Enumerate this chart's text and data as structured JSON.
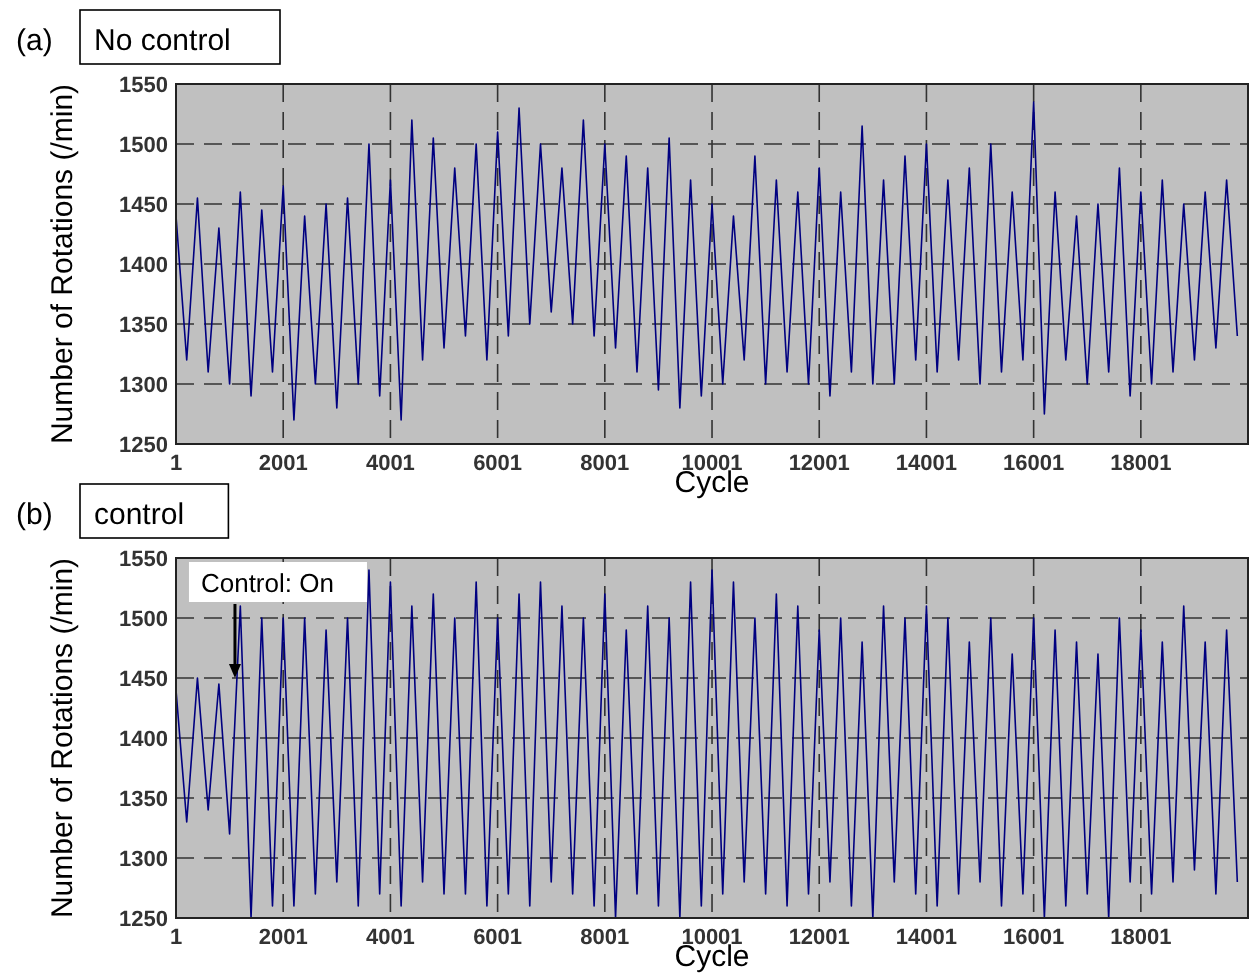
{
  "chart_data": [
    {
      "type": "line",
      "title": "(a)",
      "subtitle": "No control",
      "xlabel": "Cycle",
      "ylabel": "Number of Rotations (/min)",
      "x": [
        1,
        201,
        401,
        601,
        801,
        1001,
        1201,
        1401,
        1601,
        1801,
        2001,
        2201,
        2401,
        2601,
        2801,
        3001,
        3201,
        3401,
        3601,
        3801,
        4001,
        4201,
        4401,
        4601,
        4801,
        5001,
        5201,
        5401,
        5601,
        5801,
        6001,
        6201,
        6401,
        6601,
        6801,
        7001,
        7201,
        7401,
        7601,
        7801,
        8001,
        8201,
        8401,
        8601,
        8801,
        9001,
        9201,
        9401,
        9601,
        9801,
        10001,
        10201,
        10401,
        10601,
        10801,
        11001,
        11201,
        11401,
        11601,
        11801,
        12001,
        12201,
        12401,
        12601,
        12801,
        13001,
        13201,
        13401,
        13601,
        13801,
        14001,
        14201,
        14401,
        14601,
        14801,
        15001,
        15201,
        15401,
        15601,
        15801,
        16001,
        16201,
        16401,
        16601,
        16801,
        17001,
        17201,
        17401,
        17601,
        17801,
        18001,
        18201,
        18401,
        18601,
        18801,
        19001,
        19201,
        19401,
        19601,
        19801
      ],
      "series": [
        {
          "color": "#000080",
          "values": [
            1440,
            1320,
            1455,
            1310,
            1430,
            1300,
            1460,
            1290,
            1445,
            1310,
            1465,
            1270,
            1440,
            1300,
            1450,
            1280,
            1455,
            1300,
            1500,
            1290,
            1470,
            1270,
            1520,
            1320,
            1505,
            1330,
            1480,
            1340,
            1500,
            1320,
            1510,
            1340,
            1530,
            1350,
            1500,
            1360,
            1480,
            1350,
            1520,
            1340,
            1500,
            1330,
            1490,
            1310,
            1480,
            1295,
            1505,
            1280,
            1470,
            1290,
            1450,
            1300,
            1440,
            1320,
            1490,
            1300,
            1470,
            1310,
            1460,
            1300,
            1480,
            1290,
            1460,
            1310,
            1515,
            1300,
            1470,
            1300,
            1490,
            1320,
            1500,
            1310,
            1470,
            1320,
            1480,
            1300,
            1500,
            1310,
            1460,
            1320,
            1535,
            1275,
            1460,
            1320,
            1440,
            1300,
            1450,
            1310,
            1480,
            1290,
            1460,
            1300,
            1470,
            1310,
            1450,
            1320,
            1460,
            1330,
            1470,
            1340
          ]
        }
      ],
      "xlim": [
        1,
        20000
      ],
      "xticks": [
        1,
        2001,
        4001,
        6001,
        8001,
        10001,
        12001,
        14001,
        16001,
        18001
      ],
      "ylim": [
        1250,
        1550
      ],
      "yticks": [
        1250,
        1300,
        1350,
        1400,
        1450,
        1500,
        1550
      ],
      "grid": true
    },
    {
      "type": "line",
      "title": "(b)",
      "subtitle": "control",
      "xlabel": "Cycle",
      "ylabel": "Number of Rotations (/min)",
      "annotations": [
        {
          "text": "Control: On",
          "x": 1101,
          "y": 1450
        }
      ],
      "x": [
        1,
        201,
        401,
        601,
        801,
        1001,
        1201,
        1401,
        1601,
        1801,
        2001,
        2201,
        2401,
        2601,
        2801,
        3001,
        3201,
        3401,
        3601,
        3801,
        4001,
        4201,
        4401,
        4601,
        4801,
        5001,
        5201,
        5401,
        5601,
        5801,
        6001,
        6201,
        6401,
        6601,
        6801,
        7001,
        7201,
        7401,
        7601,
        7801,
        8001,
        8201,
        8401,
        8601,
        8801,
        9001,
        9201,
        9401,
        9601,
        9801,
        10001,
        10201,
        10401,
        10601,
        10801,
        11001,
        11201,
        11401,
        11601,
        11801,
        12001,
        12201,
        12401,
        12601,
        12801,
        13001,
        13201,
        13401,
        13601,
        13801,
        14001,
        14201,
        14401,
        14601,
        14801,
        15001,
        15201,
        15401,
        15601,
        15801,
        16001,
        16201,
        16401,
        16601,
        16801,
        17001,
        17201,
        17401,
        17601,
        17801,
        18001,
        18201,
        18401,
        18601,
        18801,
        19001,
        19201,
        19401,
        19601,
        19801
      ],
      "series": [
        {
          "color": "#000080",
          "values": [
            1440,
            1330,
            1450,
            1340,
            1445,
            1320,
            1510,
            1250,
            1500,
            1260,
            1500,
            1260,
            1500,
            1270,
            1490,
            1280,
            1500,
            1260,
            1540,
            1270,
            1530,
            1260,
            1510,
            1280,
            1520,
            1270,
            1500,
            1270,
            1530,
            1260,
            1500,
            1270,
            1520,
            1260,
            1530,
            1280,
            1510,
            1270,
            1500,
            1260,
            1520,
            1250,
            1490,
            1270,
            1510,
            1260,
            1500,
            1250,
            1530,
            1260,
            1540,
            1270,
            1530,
            1280,
            1500,
            1270,
            1520,
            1260,
            1510,
            1270,
            1490,
            1280,
            1500,
            1260,
            1480,
            1250,
            1510,
            1280,
            1500,
            1270,
            1510,
            1260,
            1500,
            1270,
            1480,
            1280,
            1500,
            1260,
            1470,
            1270,
            1500,
            1250,
            1490,
            1260,
            1480,
            1270,
            1470,
            1250,
            1500,
            1280,
            1490,
            1270,
            1480,
            1280,
            1510,
            1290,
            1480,
            1270,
            1490,
            1280
          ]
        }
      ],
      "xlim": [
        1,
        20000
      ],
      "xticks": [
        1,
        2001,
        4001,
        6001,
        8001,
        10001,
        12001,
        14001,
        16001,
        18001
      ],
      "ylim": [
        1250,
        1550
      ],
      "yticks": [
        1250,
        1300,
        1350,
        1400,
        1450,
        1500,
        1550
      ],
      "grid": true
    }
  ]
}
